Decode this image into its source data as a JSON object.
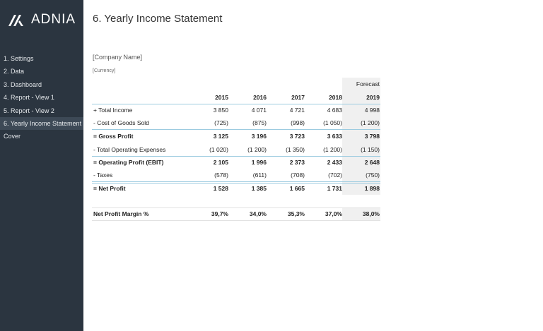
{
  "sidebar": {
    "logo": "ADNIA",
    "items": [
      {
        "label": "1. Settings"
      },
      {
        "label": "2. Data"
      },
      {
        "label": "3. Dashboard"
      },
      {
        "label": "4. Report - View 1"
      },
      {
        "label": "5. Report - View 2"
      },
      {
        "label": "6. Yearly Income Statement",
        "active": true
      },
      {
        "label": "Cover"
      }
    ]
  },
  "header": {
    "title": "6. Yearly Income Statement",
    "company": "[Company Name]",
    "currency": "[Currency]"
  },
  "table": {
    "forecast_label": "Forecast",
    "years": [
      "2015",
      "2016",
      "2017",
      "2018",
      "2019"
    ],
    "rows": [
      {
        "label": "+ Total Income",
        "values": [
          "3 850",
          "4 071",
          "4 721",
          "4 683",
          "4 998"
        ],
        "bold": false
      },
      {
        "label": "- Cost of Goods Sold",
        "values": [
          "(725)",
          "(875)",
          "(998)",
          "(1 050)",
          "(1 200)"
        ],
        "bold": false
      },
      {
        "label": "= Gross Profit",
        "values": [
          "3 125",
          "3 196",
          "3 723",
          "3 633",
          "3 798"
        ],
        "bold": true
      },
      {
        "label": "- Total Operating Expenses",
        "values": [
          "(1 020)",
          "(1 200)",
          "(1 350)",
          "(1 200)",
          "(1 150)"
        ],
        "bold": false
      },
      {
        "label": "= Operating Profit (EBIT)",
        "values": [
          "2 105",
          "1 996",
          "2 373",
          "2 433",
          "2 648"
        ],
        "bold": true
      },
      {
        "label": "- Taxes",
        "values": [
          "(578)",
          "(611)",
          "(708)",
          "(702)",
          "(750)"
        ],
        "bold": false
      },
      {
        "label": "= Net Profit",
        "values": [
          "1 528",
          "1 385",
          "1 665",
          "1 731",
          "1 898"
        ],
        "bold": true
      }
    ],
    "margin": {
      "label": "Net Profit Margin %",
      "values": [
        "39,7%",
        "34,0%",
        "35,3%",
        "37,0%",
        "38,0%"
      ]
    }
  },
  "colors": {
    "sidebar": "#2b3540",
    "accent_line": "#9ccbe0",
    "forecast_bg": "#f0f0f0"
  }
}
